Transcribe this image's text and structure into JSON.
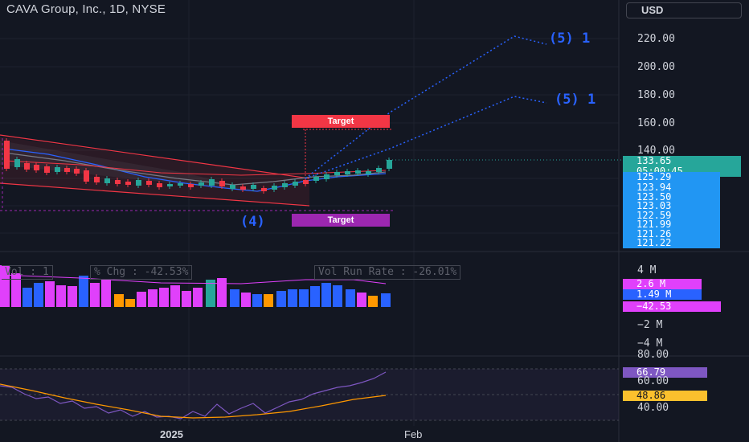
{
  "header": {
    "title": "CAVA Group, Inc., 1D, NYSE",
    "currency": "USD"
  },
  "price_axis": [
    "220.00",
    "200.00",
    "180.00",
    "160.00",
    "140.00"
  ],
  "current_price": {
    "price": "133.65",
    "countdown": "05:00:45"
  },
  "ma_badges": [
    "125.29",
    "123.94",
    "123.50",
    "123.03",
    "122.59",
    "121.99",
    "121.26",
    "121.22"
  ],
  "waves": {
    "w5a": "(5) 1",
    "w5b": "(5) 1",
    "w4": "(4)"
  },
  "targets": {
    "upper": "Target",
    "lower": "Target"
  },
  "volume": {
    "legend_vol": "Vol : 1",
    "legend_chg": "% Chg : -42.53%",
    "legend_rate": "Vol Run Rate : -26.01%",
    "axis": [
      "4 M",
      "−2 M",
      "−4 M"
    ],
    "badge_a": "2.6 M",
    "badge_b": "1.49 M",
    "badge_c": "−42.53"
  },
  "rsi": {
    "axis": [
      "80.00",
      "60.00",
      "40.00"
    ],
    "value": "66.79",
    "ma": "48.86"
  },
  "time_axis": {
    "label_2025": "2025",
    "label_feb": "Feb"
  },
  "colors": {
    "background": "#131722",
    "up": "#26a69a",
    "down": "#f23645",
    "blue": "#2962ff",
    "magenta": "#e040fb",
    "orange": "#ff9800",
    "rsi_line": "#7e57c2",
    "rsi_ma": "#fbc02d"
  }
}
